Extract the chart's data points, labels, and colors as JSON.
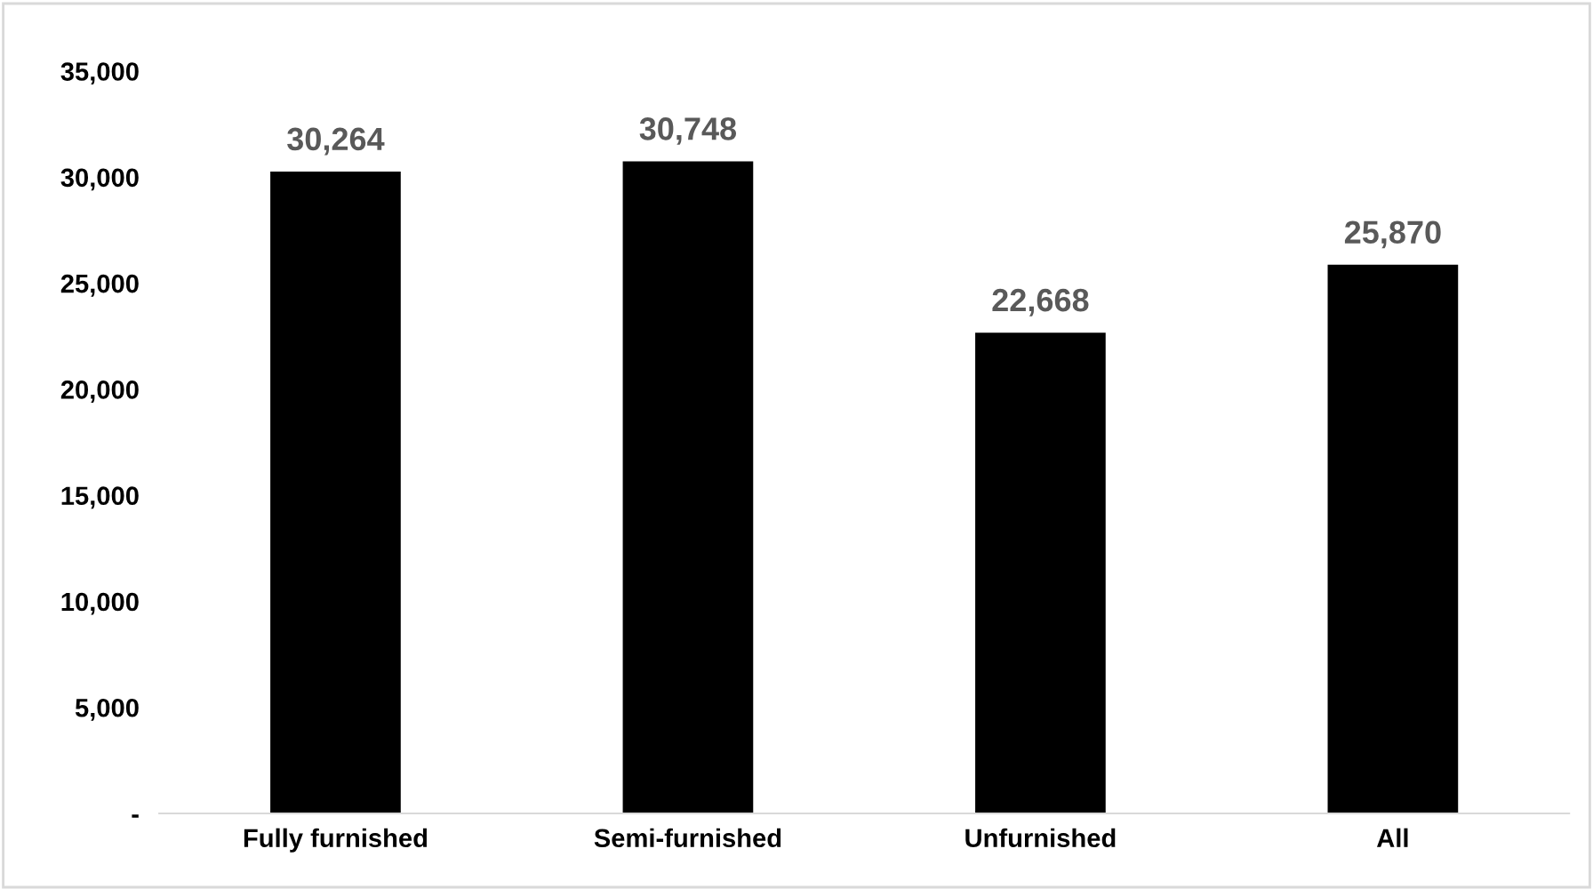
{
  "chart_data": {
    "type": "bar",
    "categories": [
      "Fully furnished",
      "Semi-furnished",
      "Unfurnished",
      "All"
    ],
    "values": [
      30264,
      30748,
      22668,
      25870
    ],
    "color": "#000000",
    "data_labels": true,
    "value_labels": [
      "30,264",
      "30,748",
      "22,668",
      "25,870"
    ],
    "ylim": [
      0,
      35000
    ],
    "yticks": [
      {
        "value": 0,
        "label": "-"
      },
      {
        "value": 5000,
        "label": "5,000"
      },
      {
        "value": 10000,
        "label": "10,000"
      },
      {
        "value": 15000,
        "label": "15,000"
      },
      {
        "value": 20000,
        "label": "20,000"
      },
      {
        "value": 25000,
        "label": "25,000"
      },
      {
        "value": 30000,
        "label": "30,000"
      },
      {
        "value": 35000,
        "label": "35,000"
      }
    ],
    "grid": false,
    "legend": false
  }
}
